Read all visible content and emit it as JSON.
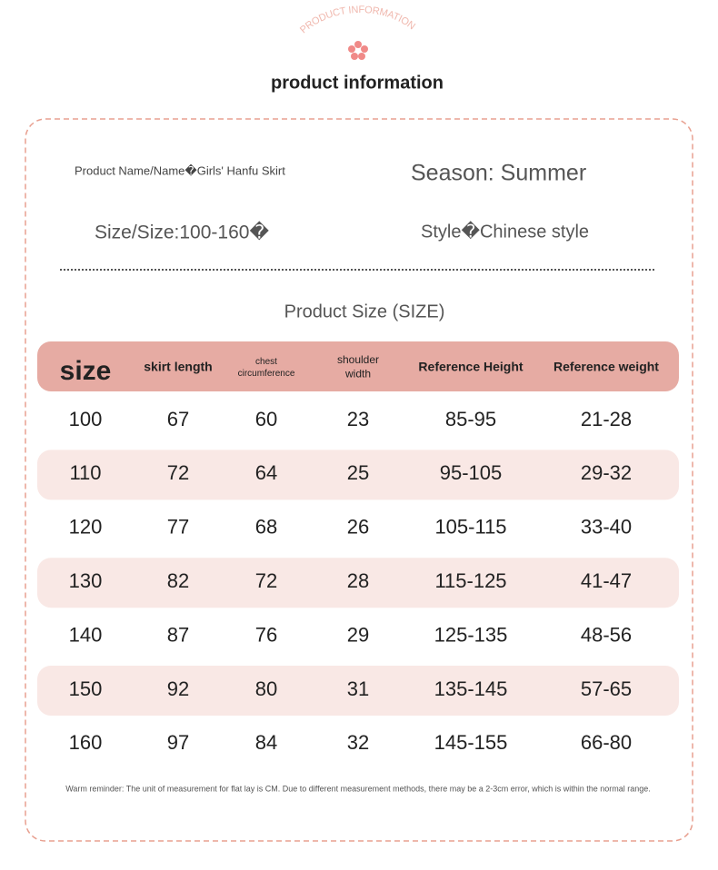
{
  "header": {
    "arc_text": "PRODUCT INFORMATION",
    "title": "product information"
  },
  "info": {
    "name": "Product Name/Name�Girls' Hanfu Skirt",
    "season": "Season: Summer",
    "size": "Size/Size:100-160�",
    "style": "Style�Chinese style"
  },
  "table": {
    "title": "Product Size (SIZE)",
    "headers": [
      "size",
      "skirt length",
      "chest circumference",
      "shoulder width",
      "Reference Height",
      "Reference weight"
    ],
    "rows": [
      [
        "100",
        "67",
        "60",
        "23",
        "85-95",
        "21-28"
      ],
      [
        "110",
        "72",
        "64",
        "25",
        "95-105",
        "29-32"
      ],
      [
        "120",
        "77",
        "68",
        "26",
        "105-115",
        "33-40"
      ],
      [
        "130",
        "82",
        "72",
        "28",
        "115-125",
        "41-47"
      ],
      [
        "140",
        "87",
        "76",
        "29",
        "125-135",
        "48-56"
      ],
      [
        "150",
        "92",
        "80",
        "31",
        "135-145",
        "57-65"
      ],
      [
        "160",
        "97",
        "84",
        "32",
        "145-155",
        "66-80"
      ]
    ],
    "note": "Warm reminder: The unit of measurement for flat lay is CM. Due to different measurement methods, there may be a 2-3cm error, which is within the normal range."
  }
}
